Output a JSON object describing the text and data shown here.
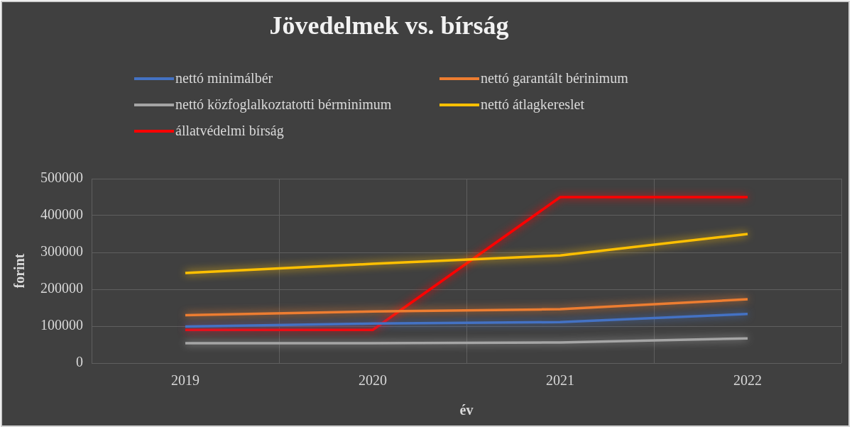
{
  "chart_data": {
    "type": "line",
    "title": "Jövedelmek vs. bírság",
    "xlabel": "év",
    "ylabel": "forint",
    "categories": [
      "2019",
      "2020",
      "2021",
      "2022"
    ],
    "series": [
      {
        "name": "nettó minimálbér",
        "color": "#4472c4",
        "values": [
          99000,
          107000,
          111000,
          133000
        ]
      },
      {
        "name": "nettó garantált bérinimum",
        "color": "#ed7d31",
        "values": [
          130000,
          140000,
          146000,
          173000
        ]
      },
      {
        "name": "nettó közfoglalkoztatotti bérminimum",
        "color": "#a5a5a5",
        "values": [
          54000,
          54000,
          56000,
          67000
        ]
      },
      {
        "name": "nettó átlagkereslet",
        "color": "#ffc000",
        "values": [
          244000,
          269000,
          292000,
          350000
        ]
      },
      {
        "name": "állatvédelmi bírság",
        "color": "#ff0000",
        "values": [
          90000,
          90000,
          450000,
          450000
        ]
      }
    ],
    "ylim": [
      0,
      500000
    ],
    "yticks": [
      0,
      100000,
      200000,
      300000,
      400000,
      500000
    ],
    "grid": true,
    "legend": "top",
    "marker": "none",
    "line_style": "solid"
  }
}
